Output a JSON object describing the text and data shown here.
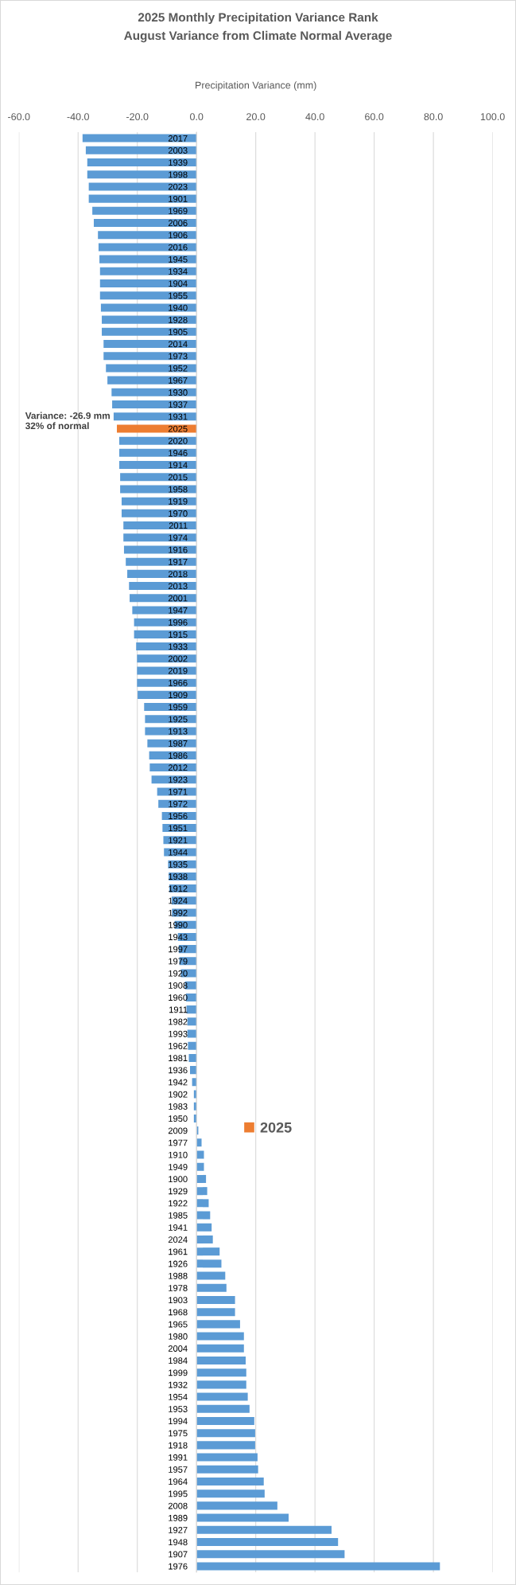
{
  "chart_data": {
    "type": "bar",
    "orientation": "horizontal",
    "stacked": true,
    "title": "2025 Monthly Precipitation Variance Rank",
    "subtitle": "August Variance from Climate Normal Average",
    "xlabel": "Precipitation Variance (mm)",
    "categories": [
      "2017",
      "2003",
      "1939",
      "1998",
      "2023",
      "1901",
      "1969",
      "2006",
      "1906",
      "2016",
      "1945",
      "1934",
      "1904",
      "1955",
      "1940",
      "1928",
      "1905",
      "2014",
      "1973",
      "1952",
      "1967",
      "1930",
      "1937",
      "1931",
      "2025",
      "2020",
      "1946",
      "1914",
      "2015",
      "1958",
      "1919",
      "1970",
      "2011",
      "1974",
      "1916",
      "1917",
      "2018",
      "2013",
      "2001",
      "1947",
      "1996",
      "1915",
      "1933",
      "2002",
      "2019",
      "1966",
      "1909",
      "1959",
      "1925",
      "1913",
      "1987",
      "1986",
      "2012",
      "1923",
      "1971",
      "1972",
      "1956",
      "1951",
      "1921",
      "1944",
      "1935",
      "1938",
      "1912",
      "1924",
      "1992",
      "1990",
      "1943",
      "1997",
      "1979",
      "1920",
      "1908",
      "1960",
      "1911",
      "1982",
      "1993",
      "1962",
      "1981",
      "1936",
      "1942",
      "1902",
      "1983",
      "1950",
      "2009",
      "1977",
      "1910",
      "1949",
      "1900",
      "1929",
      "1922",
      "1985",
      "1941",
      "2024",
      "1961",
      "1926",
      "1988",
      "1978",
      "1903",
      "1968",
      "1965",
      "1980",
      "2004",
      "1984",
      "1999",
      "1932",
      "1954",
      "1953",
      "1994",
      "1975",
      "1918",
      "1991",
      "1957",
      "1964",
      "1995",
      "2008",
      "1989",
      "1927",
      "1948",
      "1907",
      "1976"
    ],
    "series": [
      {
        "color": "#5b9bd5",
        "values": [
          -38.5,
          -37.4,
          -36.9,
          -36.9,
          -36.4,
          -36.4,
          -35.2,
          -34.7,
          -33.3,
          -33.1,
          -32.8,
          -32.6,
          -32.6,
          -32.6,
          -32.3,
          -32.0,
          -32.0,
          -31.4,
          -31.4,
          -30.6,
          -30.1,
          -28.7,
          -28.5,
          -28.0,
          null,
          -26.1,
          -26.1,
          -26.1,
          -25.8,
          -25.8,
          -25.3,
          -25.3,
          -24.7,
          -24.7,
          -24.5,
          -23.9,
          -23.4,
          -22.8,
          -22.6,
          -21.7,
          -21.1,
          -21.1,
          -20.4,
          -20.1,
          -20.1,
          -20.1,
          -19.9,
          -17.7,
          -17.4,
          -17.4,
          -16.6,
          -16.0,
          -15.8,
          -15.2,
          -13.3,
          -12.9,
          -11.7,
          -11.5,
          -11.2,
          -11.0,
          -9.6,
          -9.4,
          -9.2,
          -8.4,
          -8.3,
          -7.4,
          -6.3,
          -6.0,
          -5.8,
          -5.3,
          -3.9,
          -3.6,
          -3.4,
          -3.1,
          -3.1,
          -2.9,
          -2.6,
          -2.2,
          -1.5,
          -0.9,
          -0.9,
          -0.9,
          0.6,
          1.7,
          2.5,
          2.5,
          3.2,
          3.6,
          4.1,
          4.6,
          5.1,
          5.5,
          7.8,
          8.4,
          9.7,
          10.1,
          13.0,
          13.0,
          14.7,
          16.0,
          16.0,
          16.6,
          16.8,
          16.8,
          17.3,
          17.9,
          19.5,
          19.8,
          19.8,
          20.6,
          20.8,
          22.7,
          23.0,
          27.3,
          31.1,
          45.6,
          47.8,
          50.0,
          82.2
        ]
      },
      {
        "name": "2025",
        "color": "#ed7d31",
        "values": [
          null,
          null,
          null,
          null,
          null,
          null,
          null,
          null,
          null,
          null,
          null,
          null,
          null,
          null,
          null,
          null,
          null,
          null,
          null,
          null,
          null,
          null,
          null,
          null,
          -26.9,
          null,
          null,
          null,
          null,
          null,
          null,
          null,
          null,
          null,
          null,
          null,
          null,
          null,
          null,
          null,
          null,
          null,
          null,
          null,
          null,
          null,
          null,
          null,
          null,
          null,
          null,
          null,
          null,
          null,
          null,
          null,
          null,
          null,
          null,
          null,
          null,
          null,
          null,
          null,
          null,
          null,
          null,
          null,
          null,
          null,
          null,
          null,
          null,
          null,
          null,
          null,
          null,
          null,
          null,
          null,
          null,
          null,
          null,
          null,
          null,
          null,
          null,
          null,
          null,
          null,
          null,
          null,
          null,
          null,
          null,
          null,
          null,
          null,
          null,
          null,
          null,
          null,
          null,
          null,
          null,
          null,
          null,
          null,
          null,
          null,
          null,
          null,
          null,
          null,
          null,
          null,
          null,
          null,
          null
        ]
      }
    ],
    "xlim": [
      -60,
      100
    ],
    "xticks": [
      {
        "value": -60,
        "label": "-60.0"
      },
      {
        "value": -40,
        "label": "-40.0"
      },
      {
        "value": -20,
        "label": "-20.0"
      },
      {
        "value": 0,
        "label": "0.0"
      },
      {
        "value": 20,
        "label": "20.0"
      },
      {
        "value": 40,
        "label": "40.0"
      },
      {
        "value": 60,
        "label": "60.0"
      },
      {
        "value": 80,
        "label": "80.0"
      },
      {
        "value": 100,
        "label": "100.0"
      }
    ],
    "grid": "x",
    "legend": "center",
    "annotations": [
      {
        "text": "Variance: -26.9 mm\n32% of normal",
        "x": -26.9,
        "y": "2025"
      }
    ]
  }
}
